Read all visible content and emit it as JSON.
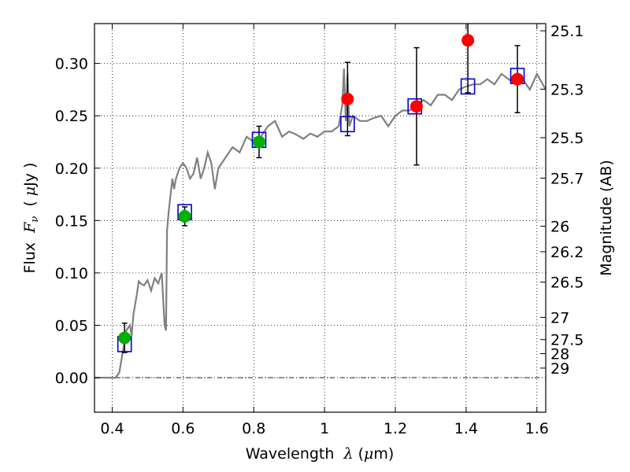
{
  "chart_data": {
    "type": "scatter",
    "title": "",
    "xlabel": "Wavelength  λ (μm)",
    "ylabel": "Flux  Fν  ( μJy )",
    "y2label": "Magnitude (AB)",
    "xlim": [
      0.35,
      1.625
    ],
    "ylim": [
      -0.033,
      0.338
    ],
    "grid": true,
    "x_ticks": [
      {
        "value": 0.4,
        "label": "0.4"
      },
      {
        "value": 0.6,
        "label": "0.6"
      },
      {
        "value": 0.8,
        "label": "0.8"
      },
      {
        "value": 1.0,
        "label": "1"
      },
      {
        "value": 1.2,
        "label": "1.2"
      },
      {
        "value": 1.4,
        "label": "1.4"
      },
      {
        "value": 1.6,
        "label": "1.6"
      }
    ],
    "y_ticks": [
      {
        "value": 0.0,
        "label": "0.00"
      },
      {
        "value": 0.05,
        "label": "0.05"
      },
      {
        "value": 0.1,
        "label": "0.10"
      },
      {
        "value": 0.15,
        "label": "0.15"
      },
      {
        "value": 0.2,
        "label": "0.20"
      },
      {
        "value": 0.25,
        "label": "0.25"
      },
      {
        "value": 0.3,
        "label": "0.30"
      }
    ],
    "mag_ticks": [
      {
        "value": 25.1,
        "label": "25.1"
      },
      {
        "value": 25.3,
        "label": "25.3"
      },
      {
        "value": 25.5,
        "label": "25.5"
      },
      {
        "value": 25.7,
        "label": "25.7"
      },
      {
        "value": 26.0,
        "label": "26"
      },
      {
        "value": 26.2,
        "label": "26.2"
      },
      {
        "value": 26.5,
        "label": "26.5"
      },
      {
        "value": 27.0,
        "label": "27"
      },
      {
        "value": 27.5,
        "label": "27.5"
      },
      {
        "value": 28.0,
        "label": "28"
      },
      {
        "value": 29.0,
        "label": "29"
      }
    ],
    "model_spectrum": {
      "color": "#808080",
      "x": [
        0.35,
        0.36,
        0.37,
        0.38,
        0.39,
        0.4,
        0.41,
        0.42,
        0.43,
        0.44,
        0.45,
        0.455,
        0.46,
        0.47,
        0.475,
        0.48,
        0.49,
        0.5,
        0.51,
        0.52,
        0.53,
        0.54,
        0.548,
        0.552,
        0.555,
        0.56,
        0.57,
        0.575,
        0.58,
        0.59,
        0.6,
        0.61,
        0.62,
        0.63,
        0.64,
        0.65,
        0.66,
        0.67,
        0.68,
        0.69,
        0.7,
        0.72,
        0.74,
        0.76,
        0.78,
        0.8,
        0.82,
        0.84,
        0.86,
        0.88,
        0.9,
        0.92,
        0.94,
        0.96,
        0.98,
        1.0,
        1.02,
        1.04,
        1.05,
        1.055,
        1.06,
        1.065,
        1.07,
        1.08,
        1.1,
        1.12,
        1.14,
        1.16,
        1.18,
        1.2,
        1.22,
        1.24,
        1.26,
        1.28,
        1.3,
        1.32,
        1.34,
        1.36,
        1.38,
        1.4,
        1.42,
        1.44,
        1.46,
        1.48,
        1.5,
        1.52,
        1.54,
        1.56,
        1.58,
        1.6,
        1.625
      ],
      "y": [
        0.0,
        0.0,
        0.0,
        0.0,
        0.0,
        0.0,
        0.0,
        0.005,
        0.025,
        0.045,
        0.05,
        0.04,
        0.06,
        0.08,
        0.092,
        0.09,
        0.088,
        0.093,
        0.083,
        0.095,
        0.09,
        0.1,
        0.05,
        0.045,
        0.14,
        0.16,
        0.19,
        0.18,
        0.19,
        0.2,
        0.205,
        0.2,
        0.19,
        0.195,
        0.21,
        0.19,
        0.2,
        0.215,
        0.205,
        0.18,
        0.2,
        0.21,
        0.22,
        0.215,
        0.23,
        0.225,
        0.23,
        0.24,
        0.245,
        0.23,
        0.235,
        0.232,
        0.228,
        0.233,
        0.23,
        0.235,
        0.235,
        0.24,
        0.26,
        0.295,
        0.245,
        0.29,
        0.24,
        0.25,
        0.245,
        0.245,
        0.248,
        0.25,
        0.24,
        0.25,
        0.255,
        0.255,
        0.26,
        0.265,
        0.26,
        0.27,
        0.27,
        0.265,
        0.275,
        0.278,
        0.28,
        0.28,
        0.285,
        0.28,
        0.29,
        0.285,
        0.28,
        0.285,
        0.275,
        0.29,
        0.275
      ]
    },
    "model_photometry": {
      "color": "#0000cc",
      "marker": "open-square",
      "x": [
        0.435,
        0.605,
        0.815,
        1.065,
        1.255,
        1.405,
        1.545
      ],
      "y": [
        0.032,
        0.158,
        0.227,
        0.242,
        0.259,
        0.278,
        0.288
      ]
    },
    "series": [
      {
        "color": "#00b000",
        "x": [
          0.435,
          0.605,
          0.815
        ],
        "y": [
          0.038,
          0.154,
          0.225
        ],
        "yerr": [
          0.014,
          0.009,
          0.015
        ]
      },
      {
        "color": "#ff0000",
        "x": [
          1.065,
          1.26,
          1.405,
          1.545
        ],
        "y": [
          0.266,
          0.259,
          0.322,
          0.285
        ],
        "yerr": [
          0.035,
          0.056,
          0.05,
          0.032
        ]
      }
    ]
  }
}
